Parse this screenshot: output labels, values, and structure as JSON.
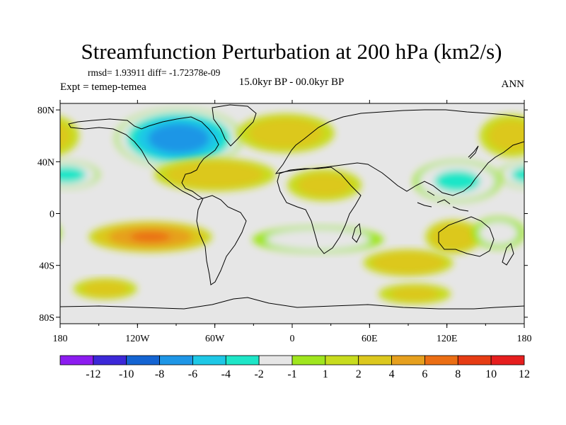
{
  "chart_data": {
    "type": "heatmap",
    "title": "Streamfunction Perturbation at 200 hPa (km2/s)",
    "stats_text": "rmsd= 1.93911 diff= -1.72378e-09",
    "experiment_text": "Expt = temep-temea",
    "period_text": "15.0kyr BP - 00.0kyr BP",
    "season_text": "ANN",
    "x_axis": {
      "range": [
        -180,
        180
      ],
      "tick_values": [
        -180,
        -120,
        -60,
        0,
        60,
        120,
        180
      ],
      "tick_labels": [
        "180",
        "120W",
        "60W",
        "0",
        "60E",
        "120E",
        "180"
      ]
    },
    "y_axis": {
      "range": [
        -85,
        85
      ],
      "tick_values": [
        80,
        40,
        0,
        -40,
        -80
      ],
      "tick_labels": [
        "80N",
        "40N",
        "0",
        "40S",
        "80S"
      ]
    },
    "colorbar": {
      "colors": [
        "#8c1cf0",
        "#3c28d8",
        "#1464d2",
        "#1e96e6",
        "#1ec8e6",
        "#1ee6c8",
        "#e6e6e6",
        "#a0e61e",
        "#c8dc1e",
        "#dcc81e",
        "#e6a01e",
        "#eb6e14",
        "#e63c14",
        "#e61e1e"
      ],
      "tick_labels": [
        "-12",
        "-10",
        "-8",
        "-6",
        "-4",
        "-2",
        "-1",
        "1",
        "2",
        "4",
        "6",
        "8",
        "10",
        "12"
      ]
    },
    "anomalies": [
      {
        "name": "north-america-low",
        "lon": -88,
        "lat": 58,
        "rx": 52,
        "ry": 25,
        "value": -9.5
      },
      {
        "name": "north-pacific-low",
        "lon": -175,
        "lat": 30,
        "rx": 28,
        "ry": 12,
        "value": -5
      },
      {
        "name": "east-asia-low",
        "lon": 128,
        "lat": 25,
        "rx": 38,
        "ry": 18,
        "value": -4.5
      },
      {
        "name": "eastern-pacific-high",
        "lon": -110,
        "lat": -18,
        "rx": 52,
        "ry": 13,
        "value": 6
      },
      {
        "name": "atlantic-subtropical-high",
        "lon": -60,
        "lat": 30,
        "rx": 55,
        "ry": 15,
        "value": 3.2
      },
      {
        "name": "europe-high",
        "lon": -5,
        "lat": 62,
        "rx": 45,
        "ry": 18,
        "value": 2.8
      },
      {
        "name": "north-africa-high",
        "lon": 25,
        "lat": 22,
        "rx": 35,
        "ry": 15,
        "value": 2.5
      },
      {
        "name": "south-atlantic-low",
        "lon": 20,
        "lat": -20,
        "rx": 60,
        "ry": 12,
        "value": -3
      },
      {
        "name": "southern-ocean-high",
        "lon": 90,
        "lat": -38,
        "rx": 40,
        "ry": 12,
        "value": 3.5
      },
      {
        "name": "australia-high",
        "lon": 125,
        "lat": -18,
        "rx": 25,
        "ry": 15,
        "value": 3.5
      },
      {
        "name": "south-pacific-low",
        "lon": 160,
        "lat": -15,
        "rx": 25,
        "ry": 15,
        "value": -2.5
      },
      {
        "name": "pacific-antarctic-high",
        "lon": -145,
        "lat": -58,
        "rx": 30,
        "ry": 10,
        "value": 2.5
      },
      {
        "name": "far-east-pacific-high",
        "lon": 170,
        "lat": 60,
        "rx": 30,
        "ry": 20,
        "value": 2.5
      },
      {
        "name": "west-pacific-high",
        "lon": 95,
        "lat": -62,
        "rx": 35,
        "ry": 10,
        "value": 2.2
      }
    ]
  }
}
